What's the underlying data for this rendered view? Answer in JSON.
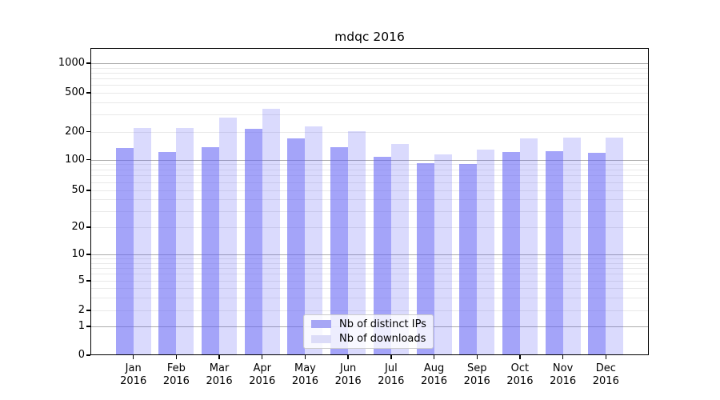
{
  "title": "mdqc 2016",
  "colors": {
    "bar_distinct_ips": "rgba(95,95,245,0.57)",
    "bar_downloads": "rgba(95,95,245,0.23)",
    "legend_swatch_ips": "#a6a6f5",
    "legend_swatch_downloads": "#dcdcf8",
    "grid_major": "#ababab",
    "grid_minor": "#e9e9e9",
    "axis": "#000000"
  },
  "chart_data": {
    "type": "bar",
    "title": "mdqc 2016",
    "categories": [
      "Jan 2016",
      "Feb 2016",
      "Mar 2016",
      "Apr 2016",
      "May 2016",
      "Jun 2016",
      "Jul 2016",
      "Aug 2016",
      "Sep 2016",
      "Oct 2016",
      "Nov 2016",
      "Dec 2016"
    ],
    "series": [
      {
        "name": "Nb of distinct IPs",
        "values": [
          132,
          121,
          137,
          214,
          170,
          136,
          107,
          92,
          91,
          120,
          124,
          118
        ]
      },
      {
        "name": "Nb of downloads",
        "values": [
          218,
          218,
          280,
          340,
          226,
          201,
          148,
          113,
          128,
          170,
          173,
          174
        ]
      }
    ],
    "yscale": "symlog",
    "ylim": [
      0,
      1500
    ],
    "yticks": [
      1000,
      500,
      200,
      100,
      50,
      20,
      10,
      5,
      2,
      1,
      0
    ],
    "grid": "horizontal, log major and minor",
    "legend_position": "lower center"
  }
}
